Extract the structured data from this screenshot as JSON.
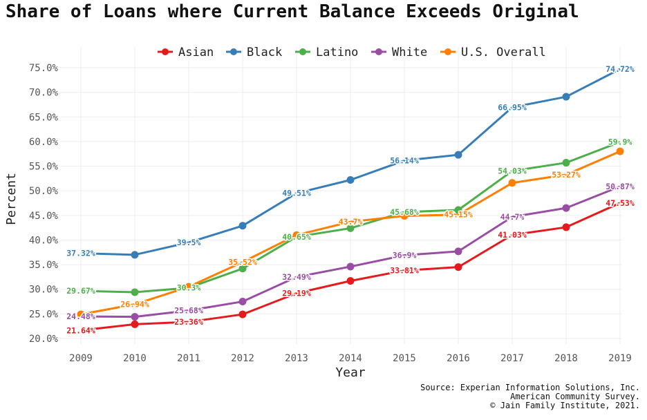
{
  "chart_data": {
    "type": "line",
    "title": "Share of Loans where Current Balance Exceeds Original",
    "xlabel": "Year",
    "ylabel": "Percent",
    "x": [
      2009,
      2010,
      2011,
      2012,
      2013,
      2014,
      2015,
      2016,
      2017,
      2018,
      2019
    ],
    "ylim": [
      20,
      75
    ],
    "yticks": [
      20,
      25,
      30,
      35,
      40,
      45,
      50,
      55,
      60,
      65,
      70,
      75
    ],
    "ytick_labels": [
      "20.0%",
      "25.0%",
      "30.0%",
      "35.0%",
      "40.0%",
      "45.0%",
      "50.0%",
      "55.0%",
      "60.0%",
      "65.0%",
      "70.0%",
      "75.0%"
    ],
    "grid": true,
    "legend_position": "top",
    "series": [
      {
        "name": "Asian",
        "color": "#e41a1c",
        "values": [
          21.64,
          22.9,
          23.36,
          24.9,
          29.19,
          31.7,
          33.81,
          34.5,
          41.03,
          42.6,
          47.53
        ],
        "labels": [
          "21.64%",
          null,
          "23.36%",
          null,
          "29.19%",
          null,
          "33.81%",
          null,
          "41.03%",
          null,
          "47.53%"
        ]
      },
      {
        "name": "Black",
        "color": "#377eb8",
        "values": [
          37.32,
          37.0,
          39.5,
          42.9,
          49.51,
          52.2,
          56.14,
          57.3,
          66.95,
          69.1,
          74.72
        ],
        "labels": [
          "37.32%",
          null,
          "39.5%",
          null,
          "49.51%",
          null,
          "56.14%",
          null,
          "66.95%",
          null,
          "74.72%"
        ]
      },
      {
        "name": "Latino",
        "color": "#4daf4a",
        "values": [
          29.67,
          29.4,
          30.3,
          34.2,
          40.65,
          42.4,
          45.68,
          46.1,
          54.03,
          55.7,
          59.9
        ],
        "labels": [
          "29.67%",
          null,
          "30.3%",
          null,
          "40.65%",
          null,
          "45.68%",
          null,
          "54.03%",
          null,
          "59.9%"
        ]
      },
      {
        "name": "White",
        "color": "#984ea3",
        "values": [
          24.48,
          24.4,
          25.68,
          27.5,
          32.49,
          34.6,
          36.9,
          37.7,
          44.7,
          46.5,
          50.87
        ],
        "labels": [
          "24.48%",
          null,
          "25.68%",
          null,
          "32.49%",
          null,
          "36.9%",
          null,
          "44.7%",
          null,
          "50.87%"
        ]
      },
      {
        "name": "U.S. Overall",
        "color": "#ff7f00",
        "values": [
          24.9,
          26.94,
          30.5,
          35.52,
          41.0,
          43.7,
          44.9,
          45.15,
          51.6,
          53.27,
          58.0
        ],
        "labels": [
          null,
          "26.94%",
          null,
          "35.52%",
          null,
          "43.7%",
          null,
          "45.15%",
          null,
          "53.27%",
          null
        ]
      }
    ]
  },
  "source": [
    "Source: Experian Information Solutions, Inc.",
    "American Community Survey.",
    "© Jain Family Institute, 2021."
  ]
}
